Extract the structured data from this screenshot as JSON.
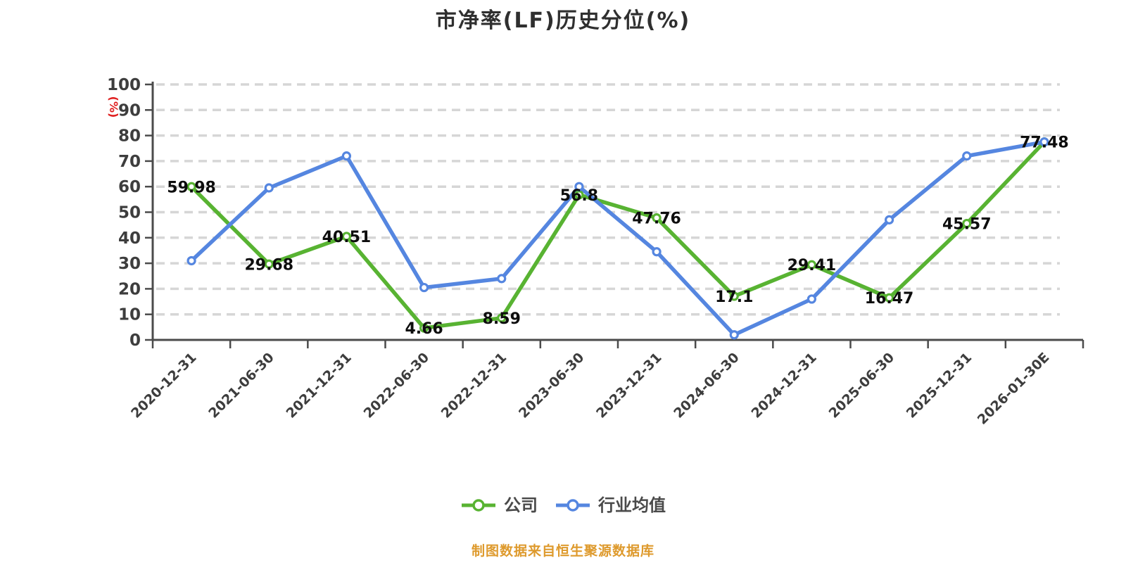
{
  "chart": {
    "title": "市净率(LF)历史分位(%)"
  },
  "colors": {
    "axis": "#4b4b4b",
    "grid": "#d6d6d6",
    "tick_label": "#3d3d3d",
    "value_label": "#0d0d0d",
    "y_unit_label": "#e02020",
    "company_series": "#58b332",
    "industry_series": "#5586e0",
    "footer": "#de9a2d",
    "marker_fill": "#ffffff"
  },
  "footer": {
    "note": "制图数据来自恒生聚源数据库"
  },
  "chart_data": {
    "type": "line",
    "title": "市净率(LF)历史分位(%)",
    "categories": [
      "2020-12-31",
      "2021-06-30",
      "2021-12-31",
      "2022-06-30",
      "2022-12-31",
      "2023-06-30",
      "2023-12-31",
      "2024-06-30",
      "2024-12-31",
      "2025-06-30",
      "2025-12-31",
      "2026-01-30E"
    ],
    "series": [
      {
        "name": "公司",
        "color": "#58b332",
        "values": [
          59.98,
          29.68,
          40.51,
          4.66,
          8.59,
          56.8,
          47.76,
          17.1,
          29.41,
          16.47,
          45.57,
          77.48
        ],
        "point_labels_visible": true
      },
      {
        "name": "行业均值",
        "color": "#5586e0",
        "values": [
          31,
          59.5,
          72,
          20.5,
          24,
          60,
          34.5,
          2,
          16,
          47,
          72,
          77.5
        ],
        "point_labels_visible": false
      }
    ],
    "xlabel": "",
    "ylabel": "(%)",
    "ylim": [
      0,
      100
    ],
    "y_ticks": [
      0,
      10,
      20,
      30,
      40,
      50,
      60,
      70,
      80,
      90,
      100
    ],
    "grid": "horizontal dashed",
    "legend_position": "bottom",
    "x_label_rotation_deg": 45
  }
}
